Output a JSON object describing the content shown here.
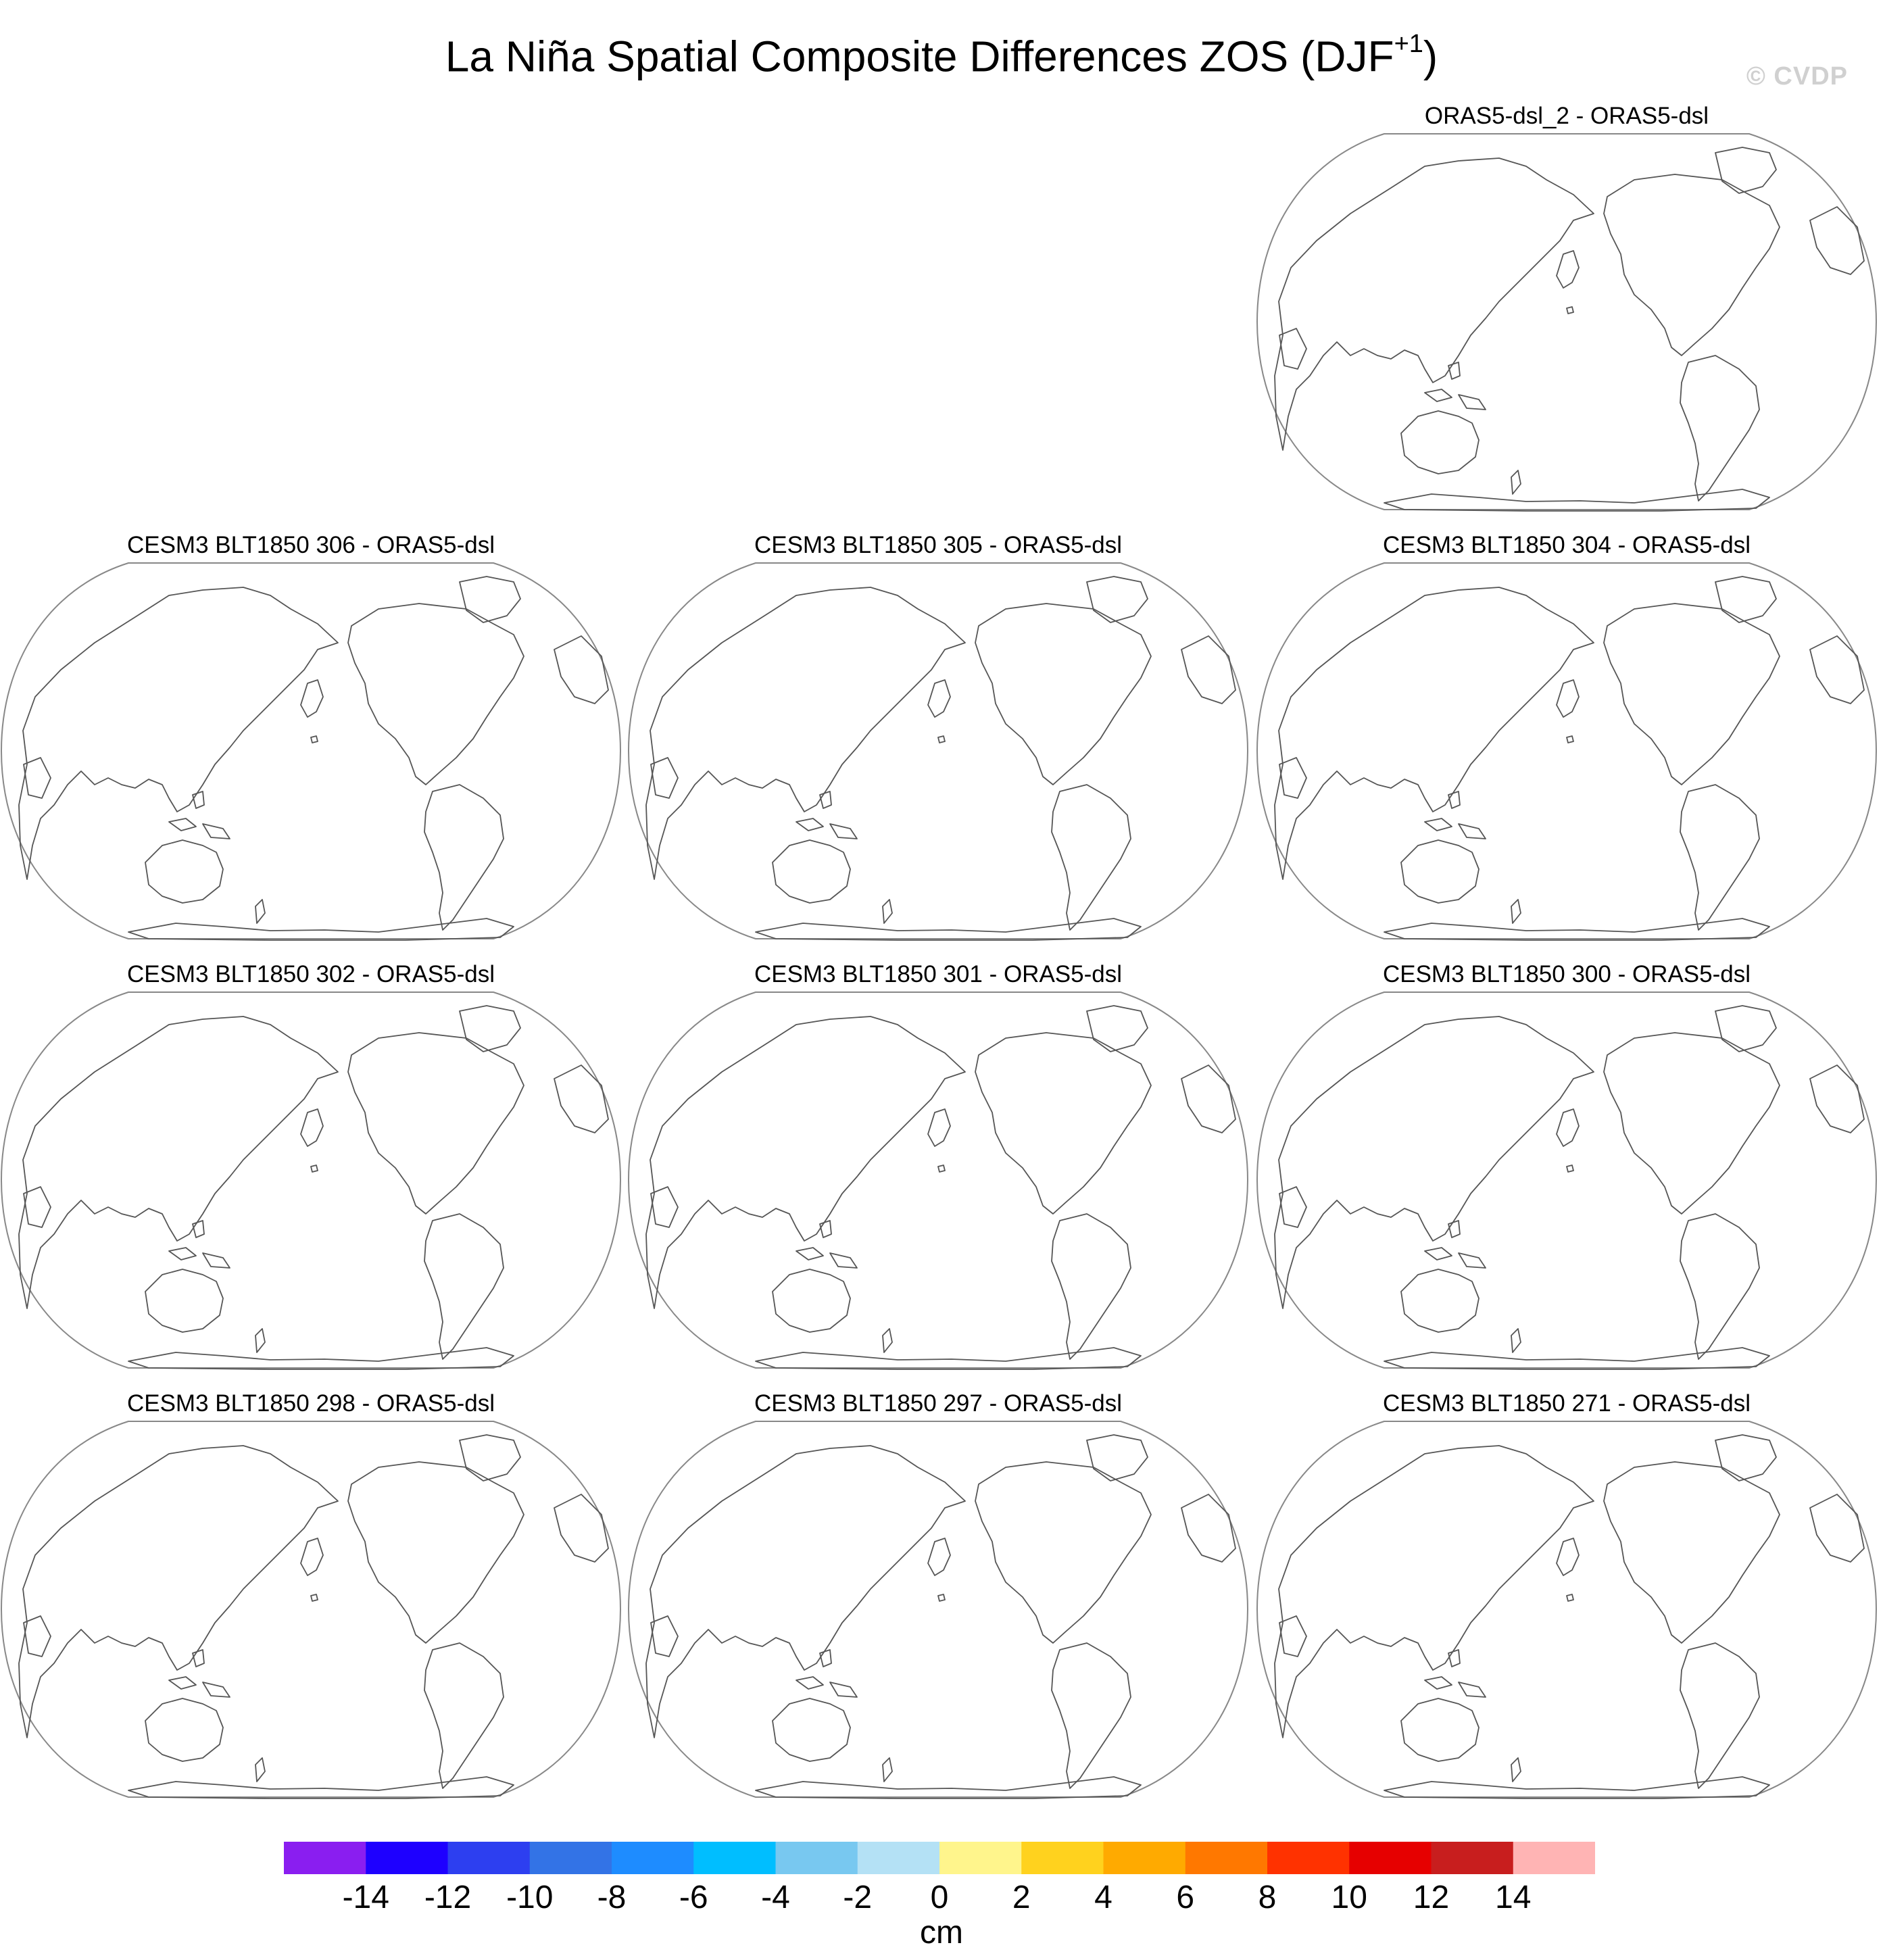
{
  "title": {
    "main": "La Niña Spatial Composite Differences ZOS (DJF",
    "superscript": "+1",
    "close": ")"
  },
  "watermark": "© CVDP",
  "panels": [
    {
      "label": "ORAS5-dsl_2 - ORAS5-dsl"
    },
    {
      "label": "CESM3 BLT1850 306 - ORAS5-dsl"
    },
    {
      "label": "CESM3 BLT1850 305 - ORAS5-dsl"
    },
    {
      "label": "CESM3 BLT1850 304 - ORAS5-dsl"
    },
    {
      "label": "CESM3 BLT1850 302 - ORAS5-dsl"
    },
    {
      "label": "CESM3 BLT1850 301 - ORAS5-dsl"
    },
    {
      "label": "CESM3 BLT1850 300 - ORAS5-dsl"
    },
    {
      "label": "CESM3 BLT1850 298 - ORAS5-dsl"
    },
    {
      "label": "CESM3 BLT1850 297 - ORAS5-dsl"
    },
    {
      "label": "CESM3 BLT1850 271 - ORAS5-dsl"
    }
  ],
  "colorbar": {
    "units": "cm",
    "tick_values": [
      -14,
      -12,
      -10,
      -8,
      -6,
      -4,
      -2,
      0,
      2,
      4,
      6,
      8,
      10,
      12,
      14
    ],
    "tick_labels": [
      "-14",
      "-12",
      "-10",
      "-8",
      "-6",
      "-4",
      "-2",
      "0",
      "2",
      "4",
      "6",
      "8",
      "10",
      "12",
      "14"
    ],
    "colors": [
      "#8a1ef0",
      "#1e00ff",
      "#2d3ff0",
      "#3373e6",
      "#1e8cff",
      "#00beff",
      "#78c8f0",
      "#b4e1f5",
      "#fff58c",
      "#ffd21e",
      "#ffaa00",
      "#ff7800",
      "#ff3200",
      "#e60000",
      "#c81e1e",
      "#ffb4b4"
    ]
  },
  "map_style": {
    "coast_color": "#555555",
    "frame_color": "#888888"
  }
}
